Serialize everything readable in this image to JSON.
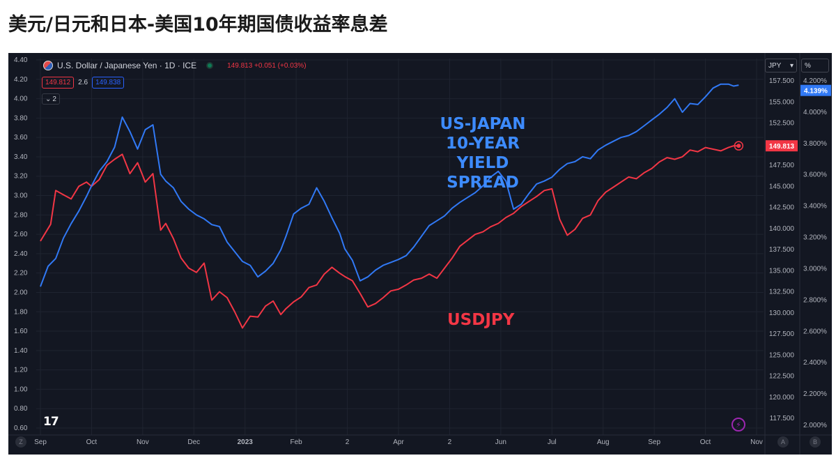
{
  "page_title": "美元/日元和日本-美国10年期国债收益率息差",
  "header": {
    "symbol_name": "U.S. Dollar / Japanese Yen · 1D · ICE",
    "ohlc_text": "149.813 +0.051 (+0.03%)",
    "bid_price": "149.812",
    "spread": "2.6",
    "ask_price": "149.838",
    "collapse_count": "2",
    "currency_selector": "JPY",
    "percent_toggle": "%"
  },
  "annotations": {
    "spread_label": "US-JAPAN\n10-YEAR\nYIELD\nSPREAD",
    "usdjpy_label": "USDJPY"
  },
  "bottom_buttons": {
    "left": "Z",
    "a": "A",
    "b": "B"
  },
  "logo_text": "17",
  "colors": {
    "background": "#131722",
    "usdjpy": "#f23645",
    "spread": "#3179f5",
    "grid": "#1f2430"
  },
  "chart_data": {
    "type": "line",
    "title": "U.S. Dollar / Japanese Yen · 1D · ICE",
    "x_tick_labels": [
      "Sep",
      "Oct",
      "Nov",
      "Dec",
      "2023",
      "Feb",
      "2",
      "Apr",
      "2",
      "Jun",
      "Jul",
      "Aug",
      "Sep",
      "Oct",
      "Nov"
    ],
    "x_tick_positions": [
      0.0,
      1.0,
      2.0,
      3.0,
      4.0,
      5.0,
      6.0,
      7.0,
      8.0,
      9.0,
      10.0,
      11.0,
      12.0,
      13.0,
      14.0
    ],
    "left_axis": {
      "ylim": [
        0.6,
        4.4
      ],
      "ticks": [
        "4.40",
        "4.20",
        "4.00",
        "3.80",
        "3.60",
        "3.40",
        "3.20",
        "3.00",
        "2.80",
        "2.60",
        "2.40",
        "2.20",
        "2.00",
        "1.80",
        "1.60",
        "1.40",
        "1.20",
        "1.00",
        "0.80",
        "0.60"
      ]
    },
    "right_axis_jpy": {
      "ylim": [
        115.0,
        160.0
      ],
      "ticks": [
        "157.500",
        "155.000",
        "152.500",
        "150.000",
        "147.500",
        "145.000",
        "142.500",
        "140.000",
        "137.500",
        "135.000",
        "132.500",
        "130.000",
        "127.500",
        "125.000",
        "122.500",
        "120.000",
        "117.500"
      ]
    },
    "right_axis_pct": {
      "ylim": [
        1.9,
        4.27
      ],
      "ticks": [
        "4.200%",
        "4.000%",
        "3.800%",
        "3.600%",
        "3.400%",
        "3.200%",
        "3.000%",
        "2.800%",
        "2.600%",
        "2.400%",
        "2.200%",
        "2.000%"
      ],
      "current_value": "4.139%"
    },
    "last_price_label": "149.813",
    "series": [
      {
        "name": "USDJPY",
        "axis": "jpy",
        "x": [
          0.0,
          0.2,
          0.3,
          0.45,
          0.6,
          0.75,
          0.9,
          1.0,
          1.15,
          1.3,
          1.45,
          1.6,
          1.75,
          1.9,
          2.05,
          2.2,
          2.35,
          2.45,
          2.6,
          2.75,
          2.9,
          3.05,
          3.2,
          3.35,
          3.5,
          3.65,
          3.8,
          3.95,
          4.1,
          4.25,
          4.4,
          4.55,
          4.7,
          4.8,
          4.95,
          5.1,
          5.25,
          5.4,
          5.55,
          5.7,
          5.85,
          5.95,
          6.1,
          6.25,
          6.4,
          6.55,
          6.7,
          6.85,
          7.0,
          7.15,
          7.3,
          7.45,
          7.6,
          7.75,
          7.9,
          8.05,
          8.2,
          8.35,
          8.5,
          8.65,
          8.8,
          8.95,
          9.1,
          9.25,
          9.4,
          9.55,
          9.7,
          9.85,
          10.0,
          10.15,
          10.3,
          10.45,
          10.6,
          10.75,
          10.9,
          11.05,
          11.2,
          11.35,
          11.5,
          11.65,
          11.8,
          11.95,
          12.1,
          12.25,
          12.4,
          12.55,
          12.7,
          12.85,
          13.0,
          13.15,
          13.3,
          13.45,
          13.55,
          13.65
        ],
        "values": [
          138.5,
          140.5,
          144.5,
          144.0,
          143.5,
          145.0,
          145.5,
          145.0,
          145.8,
          147.5,
          148.2,
          148.8,
          146.5,
          147.8,
          145.5,
          146.5,
          139.8,
          140.6,
          138.8,
          136.5,
          135.3,
          134.8,
          135.9,
          131.5,
          132.5,
          131.8,
          130.1,
          128.2,
          129.6,
          129.5,
          130.8,
          131.4,
          129.8,
          130.5,
          131.3,
          131.9,
          133.0,
          133.3,
          134.6,
          135.4,
          134.7,
          134.3,
          133.8,
          132.3,
          130.7,
          131.1,
          131.8,
          132.6,
          132.8,
          133.3,
          133.9,
          134.1,
          134.6,
          134.1,
          135.3,
          136.5,
          137.9,
          138.6,
          139.3,
          139.6,
          140.2,
          140.6,
          141.3,
          141.8,
          142.6,
          143.2,
          143.8,
          144.5,
          144.7,
          141.1,
          139.2,
          139.9,
          141.2,
          141.6,
          143.3,
          144.3,
          144.9,
          145.5,
          146.1,
          145.9,
          146.6,
          147.1,
          147.9,
          148.4,
          148.2,
          148.5,
          149.3,
          149.1,
          149.6,
          149.4,
          149.2,
          149.6,
          149.8,
          149.8
        ]
      },
      {
        "name": "US-Japan 10-Year Yield Spread",
        "axis": "left",
        "x": [
          0.0,
          0.15,
          0.3,
          0.45,
          0.6,
          0.75,
          0.9,
          1.0,
          1.15,
          1.3,
          1.45,
          1.6,
          1.75,
          1.9,
          2.05,
          2.2,
          2.35,
          2.45,
          2.6,
          2.75,
          2.9,
          3.05,
          3.2,
          3.35,
          3.5,
          3.65,
          3.8,
          3.95,
          4.1,
          4.25,
          4.4,
          4.55,
          4.7,
          4.8,
          4.95,
          5.1,
          5.25,
          5.4,
          5.55,
          5.7,
          5.85,
          5.95,
          6.1,
          6.25,
          6.4,
          6.55,
          6.7,
          6.85,
          7.0,
          7.15,
          7.3,
          7.45,
          7.6,
          7.75,
          7.9,
          8.05,
          8.2,
          8.35,
          8.5,
          8.65,
          8.8,
          8.95,
          9.1,
          9.25,
          9.4,
          9.55,
          9.7,
          9.85,
          10.0,
          10.15,
          10.3,
          10.45,
          10.6,
          10.75,
          10.9,
          11.05,
          11.2,
          11.35,
          11.5,
          11.65,
          11.8,
          11.95,
          12.1,
          12.25,
          12.4,
          12.55,
          12.7,
          12.85,
          13.0,
          13.15,
          13.3,
          13.45,
          13.55,
          13.65
        ],
        "values": [
          2.06,
          2.27,
          2.35,
          2.56,
          2.71,
          2.84,
          2.99,
          3.1,
          3.25,
          3.35,
          3.5,
          3.81,
          3.66,
          3.48,
          3.68,
          3.73,
          3.22,
          3.15,
          3.08,
          2.94,
          2.86,
          2.8,
          2.76,
          2.7,
          2.68,
          2.52,
          2.42,
          2.32,
          2.28,
          2.16,
          2.22,
          2.3,
          2.44,
          2.58,
          2.81,
          2.87,
          2.91,
          3.08,
          2.94,
          2.77,
          2.61,
          2.45,
          2.33,
          2.12,
          2.16,
          2.23,
          2.28,
          2.31,
          2.34,
          2.38,
          2.47,
          2.58,
          2.69,
          2.74,
          2.79,
          2.87,
          2.93,
          2.98,
          3.03,
          3.1,
          3.19,
          3.25,
          3.15,
          2.86,
          2.91,
          3.02,
          3.12,
          3.15,
          3.19,
          3.27,
          3.33,
          3.35,
          3.4,
          3.38,
          3.47,
          3.52,
          3.56,
          3.6,
          3.62,
          3.66,
          3.72,
          3.78,
          3.84,
          3.91,
          4.0,
          3.86,
          3.95,
          3.94,
          4.02,
          4.11,
          4.15,
          4.15,
          4.13,
          4.14
        ]
      }
    ]
  }
}
